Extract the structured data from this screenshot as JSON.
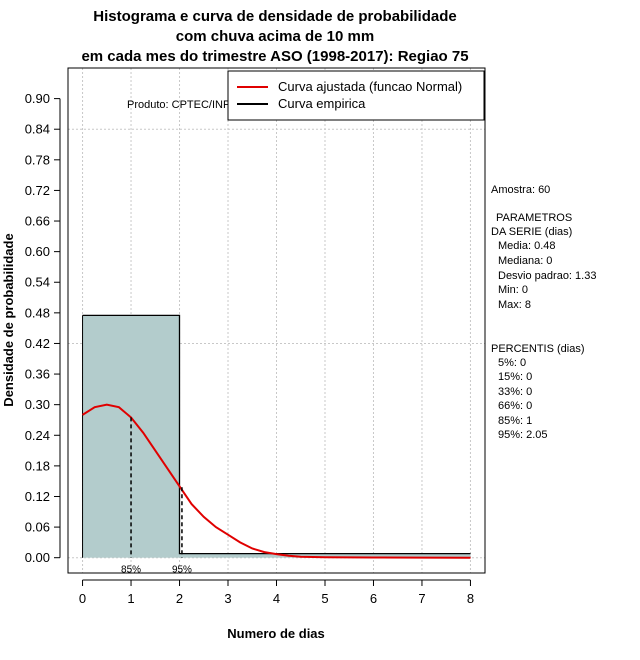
{
  "chart_data": {
    "type": "histogram",
    "title_lines": [
      "Histograma e curva de densidade de probabilidade",
      "com chuva acima de 10 mm",
      "em cada mes do trimestre ASO (1998-2017): Regiao 75"
    ],
    "xlabel": "Numero de dias",
    "ylabel": "Densidade de probabilidade",
    "xlim": [
      -0.3,
      8.3
    ],
    "ylim": [
      -0.03,
      0.96
    ],
    "x_ticks": [
      0,
      1,
      2,
      3,
      4,
      5,
      6,
      7,
      8
    ],
    "x_tick_labels": [
      "0",
      "1",
      "2",
      "3",
      "4",
      "5",
      "6",
      "7",
      "8"
    ],
    "y_ticks": [
      0.0,
      0.06,
      0.12,
      0.18,
      0.24,
      0.3,
      0.36,
      0.42,
      0.48,
      0.54,
      0.6,
      0.66,
      0.72,
      0.78,
      0.84,
      0.9
    ],
    "y_tick_labels": [
      "0.00",
      "0.06",
      "0.12",
      "0.18",
      "0.24",
      "0.30",
      "0.36",
      "0.42",
      "0.48",
      "0.54",
      "0.60",
      "0.66",
      "0.72",
      "0.78",
      "0.84",
      "0.90"
    ],
    "bins": [
      {
        "start": 0,
        "end": 2,
        "density": 0.475
      },
      {
        "start": 2,
        "end": 4,
        "density": 0.008
      },
      {
        "start": 4,
        "end": 6,
        "density": 0.008
      },
      {
        "start": 6,
        "end": 8,
        "density": 0.008
      }
    ],
    "fitted_curve": {
      "name": "Curva ajustada (funcao Normal)",
      "color": "#e00000",
      "x": [
        0,
        0.25,
        0.5,
        0.75,
        1.0,
        1.25,
        1.5,
        1.75,
        2.0,
        2.25,
        2.5,
        2.75,
        3.0,
        3.25,
        3.5,
        3.75,
        4.0,
        4.25,
        4.5,
        5.0,
        5.5,
        6.0,
        7.0,
        8.0
      ],
      "y": [
        0.28,
        0.295,
        0.3,
        0.295,
        0.275,
        0.245,
        0.21,
        0.175,
        0.14,
        0.105,
        0.08,
        0.06,
        0.045,
        0.03,
        0.018,
        0.011,
        0.007,
        0.004,
        0.002,
        0.001,
        0.0005,
        0.0003,
        0.0001,
        0.0
      ]
    },
    "empirical_curve": {
      "name": "Curva empirica",
      "color": "#000000",
      "x": [
        0,
        2,
        2,
        8
      ],
      "y": [
        0.475,
        0.475,
        0.008,
        0.008
      ]
    },
    "percentile_markers": [
      {
        "label": "85%",
        "x": 1.0,
        "y": 0.275
      },
      {
        "label": "95%",
        "x": 2.05,
        "y": 0.138
      }
    ],
    "hgrid_lines": [
      0.0,
      0.42,
      0.84
    ],
    "vgrid": true,
    "legend_position": "top-right",
    "product_label": "Produto: CPTEC/INPE",
    "bar_color": "#b3cccc",
    "side_panel": {
      "amostra": "Amostra: 60",
      "param_title_1": "PARAMETROS",
      "param_title_2": "DA SERIE (dias)",
      "media": "Media: 0.48",
      "mediana": "Mediana: 0",
      "desvio": "Desvio padrao: 1.33",
      "min": "Min: 0",
      "max": "Max: 8",
      "pct_title": "PERCENTIS (dias)",
      "p5": "5%: 0",
      "p15": "15%: 0",
      "p33": "33%: 0",
      "p66": "66%: 0",
      "p85": "85%: 1",
      "p95": "95%: 2.05"
    }
  }
}
